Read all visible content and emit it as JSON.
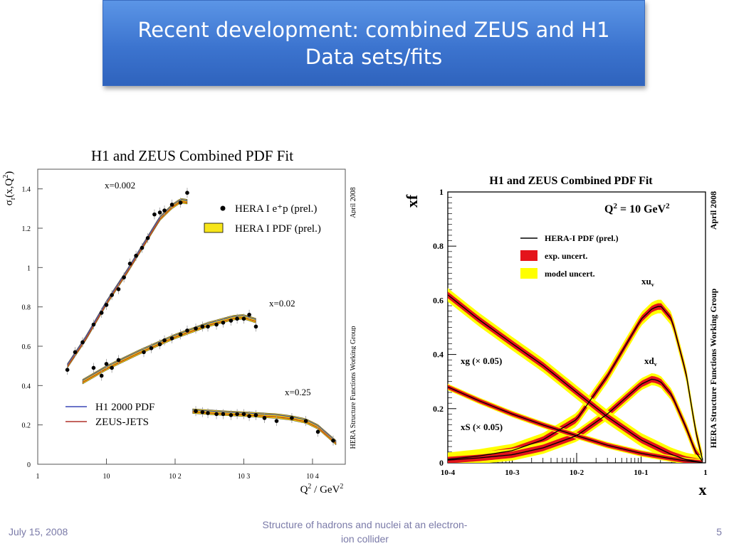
{
  "slide": {
    "title": "Recent development: combined ZEUS and H1 Data sets/fits",
    "footer_date": "July 15, 2008",
    "footer_center": "Structure of hadrons and nuclei at an electron-ion collider",
    "page_number": "5"
  },
  "chart_data": [
    {
      "type": "scatter",
      "title": "H1 and ZEUS Combined PDF Fit",
      "xlabel": "Q² / GeV²",
      "ylabel": "σr(x,Q²)",
      "xscale": "log",
      "xlim": [
        1,
        30000
      ],
      "ylim": [
        0,
        1.5
      ],
      "xticks": [
        1,
        10,
        100,
        1000,
        10000
      ],
      "xtick_labels": [
        "1",
        "10",
        "10 2",
        "10 3",
        "10 4"
      ],
      "yticks": [
        0,
        0.2,
        0.4,
        0.6,
        0.8,
        1,
        1.2,
        1.4
      ],
      "ytick_labels": [
        "0",
        "0.2",
        "0.4",
        "0.6",
        "0.8",
        "1",
        "1.2",
        "1.4"
      ],
      "side_labels": [
        "April 2008",
        "HERA Structure Functions Working Group"
      ],
      "legend": {
        "position": "top-right",
        "data_label": "HERA I e⁺p (prel.)",
        "band_label": "HERA I PDF (prel.)",
        "h1_label": "H1 2000 PDF",
        "zeus_label": "ZEUS-JETS"
      },
      "band_color": "#f7d600",
      "h1_color": "#3a47b5",
      "zeus_color": "#b0302a",
      "series": [
        {
          "name": "x=0.002",
          "points": [
            [
              2.7,
              0.48
            ],
            [
              3.5,
              0.57
            ],
            [
              4.5,
              0.62
            ],
            [
              6.5,
              0.71
            ],
            [
              8.5,
              0.77
            ],
            [
              10,
              0.81
            ],
            [
              12,
              0.86
            ],
            [
              15,
              0.89
            ],
            [
              18,
              0.95
            ],
            [
              22,
              1.02
            ],
            [
              27,
              1.06
            ],
            [
              33,
              1.1
            ],
            [
              40,
              1.15
            ],
            [
              50,
              1.27
            ],
            [
              60,
              1.28
            ],
            [
              70,
              1.29
            ],
            [
              90,
              1.32
            ],
            [
              120,
              1.33
            ],
            [
              150,
              1.38
            ]
          ],
          "curve": [
            [
              2.7,
              0.5
            ],
            [
              5,
              0.64
            ],
            [
              10,
              0.82
            ],
            [
              20,
              0.98
            ],
            [
              40,
              1.15
            ],
            [
              60,
              1.25
            ],
            [
              90,
              1.31
            ],
            [
              120,
              1.34
            ],
            [
              150,
              1.335
            ]
          ]
        },
        {
          "name": "x=0.02",
          "points": [
            [
              6.5,
              0.49
            ],
            [
              8.5,
              0.45
            ],
            [
              10,
              0.51
            ],
            [
              12,
              0.49
            ],
            [
              15,
              0.53
            ],
            [
              35,
              0.57
            ],
            [
              45,
              0.59
            ],
            [
              60,
              0.61
            ],
            [
              70,
              0.63
            ],
            [
              90,
              0.64
            ],
            [
              120,
              0.66
            ],
            [
              150,
              0.68
            ],
            [
              200,
              0.69
            ],
            [
              250,
              0.7
            ],
            [
              300,
              0.7
            ],
            [
              400,
              0.71
            ],
            [
              500,
              0.72
            ],
            [
              650,
              0.73
            ],
            [
              800,
              0.74
            ],
            [
              1000,
              0.74
            ],
            [
              1200,
              0.76
            ],
            [
              1500,
              0.7
            ]
          ],
          "curve": [
            [
              4.5,
              0.42
            ],
            [
              10,
              0.49
            ],
            [
              30,
              0.57
            ],
            [
              100,
              0.65
            ],
            [
              300,
              0.71
            ],
            [
              700,
              0.745
            ],
            [
              1000,
              0.75
            ],
            [
              1500,
              0.73
            ]
          ]
        },
        {
          "name": "x=0.25",
          "points": [
            [
              200,
              0.27
            ],
            [
              250,
              0.265
            ],
            [
              300,
              0.26
            ],
            [
              400,
              0.255
            ],
            [
              500,
              0.255
            ],
            [
              650,
              0.25
            ],
            [
              800,
              0.255
            ],
            [
              1000,
              0.255
            ],
            [
              1200,
              0.245
            ],
            [
              1500,
              0.25
            ],
            [
              2000,
              0.235
            ],
            [
              3000,
              0.22
            ],
            [
              5000,
              0.235
            ],
            [
              8000,
              0.22
            ],
            [
              12000,
              0.165
            ],
            [
              20000,
              0.12
            ]
          ],
          "curve": [
            [
              180,
              0.27
            ],
            [
              500,
              0.26
            ],
            [
              1000,
              0.255
            ],
            [
              3000,
              0.245
            ],
            [
              5000,
              0.235
            ],
            [
              8000,
              0.22
            ],
            [
              12000,
              0.19
            ],
            [
              22000,
              0.11
            ]
          ]
        }
      ]
    },
    {
      "type": "line",
      "title": "H1 and ZEUS Combined PDF Fit",
      "xlabel": "x",
      "ylabel": "xf",
      "xscale": "log",
      "xlim": [
        0.0001,
        1
      ],
      "ylim": [
        0,
        1
      ],
      "xtick_labels": [
        "10-4",
        "10-3",
        "10-2",
        "10-1",
        "1"
      ],
      "ytick_labels": [
        "0",
        "0.2",
        "0.4",
        "0.6",
        "0.8",
        "1"
      ],
      "scale_note": "Q² = 10 GeV²",
      "side_labels": [
        "April 2008",
        "HERA Structure Functions Working Group"
      ],
      "legend": {
        "position": "top-right",
        "line_label": "HERA-I PDF (prel.)",
        "exp_label": "exp. uncert.",
        "model_label": "model uncert."
      },
      "exp_color": "#e4141b",
      "model_color": "#ffff00",
      "series": [
        {
          "name": "xuv",
          "label": "xuᵥ",
          "x": [
            0.0001,
            0.0003,
            0.001,
            0.003,
            0.01,
            0.03,
            0.1,
            0.15,
            0.2,
            0.3,
            0.5,
            0.7,
            0.9
          ],
          "y": [
            0.013,
            0.025,
            0.045,
            0.085,
            0.16,
            0.32,
            0.53,
            0.57,
            0.58,
            0.53,
            0.33,
            0.12,
            0.01
          ],
          "exp": 0.012,
          "model": 0.025
        },
        {
          "name": "xdv",
          "label": "xdᵥ",
          "x": [
            0.0001,
            0.0003,
            0.001,
            0.003,
            0.01,
            0.03,
            0.1,
            0.15,
            0.2,
            0.3,
            0.5,
            0.7,
            0.9
          ],
          "y": [
            0.01,
            0.018,
            0.03,
            0.055,
            0.1,
            0.18,
            0.29,
            0.31,
            0.3,
            0.25,
            0.13,
            0.04,
            0.005
          ],
          "exp": 0.012,
          "model": 0.022
        },
        {
          "name": "xg",
          "label": "xg (× 0.05)",
          "x": [
            0.0001,
            0.0003,
            0.001,
            0.003,
            0.01,
            0.03,
            0.1,
            0.3,
            0.5,
            0.9
          ],
          "y": [
            0.62,
            0.53,
            0.44,
            0.36,
            0.26,
            0.17,
            0.085,
            0.03,
            0.012,
            0.001
          ],
          "exp": 0.012,
          "model": 0.025
        },
        {
          "name": "xS",
          "label": "xS (× 0.05)",
          "x": [
            0.0001,
            0.0003,
            0.001,
            0.003,
            0.01,
            0.03,
            0.1,
            0.3,
            0.5,
            0.9
          ],
          "y": [
            0.28,
            0.23,
            0.18,
            0.14,
            0.1,
            0.065,
            0.035,
            0.015,
            0.007,
            0.001
          ],
          "exp": 0.008,
          "model": 0.012
        }
      ]
    }
  ]
}
